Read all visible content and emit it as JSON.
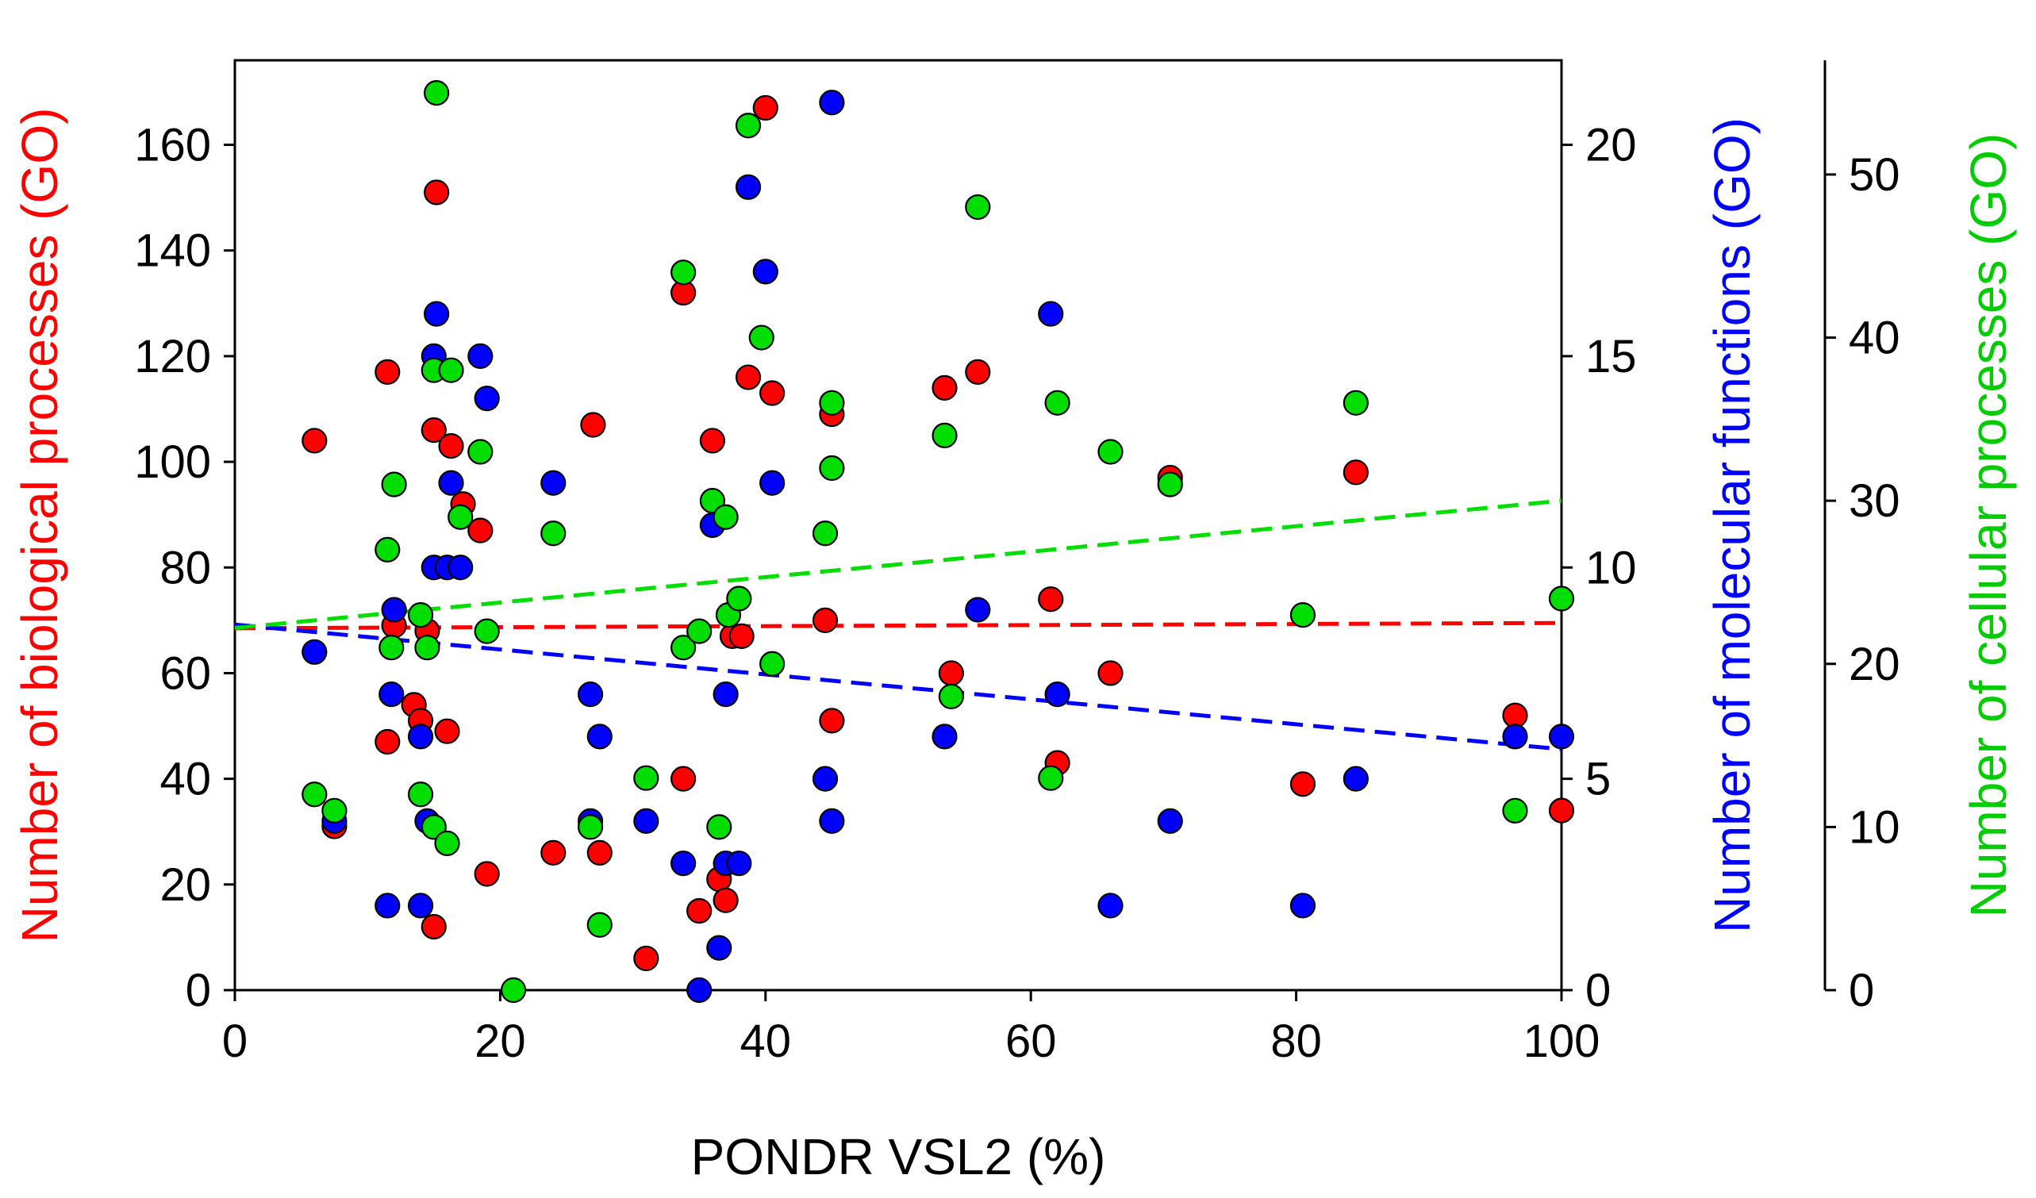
{
  "chart_data": {
    "type": "scatter",
    "xlabel": "PONDR VSL2 (%)",
    "x_range": [
      0,
      100
    ],
    "x_ticks": [
      0,
      20,
      40,
      60,
      80,
      100
    ],
    "axes": {
      "left": {
        "label_main": "Number of biological processes ",
        "label_suffix": "(GO)",
        "color": "#ff0000",
        "range": [
          0,
          176
        ],
        "ticks": [
          0,
          20,
          40,
          60,
          80,
          100,
          120,
          140,
          160
        ]
      },
      "right1": {
        "label_main": "Number of molecular functions ",
        "label_suffix": "(GO)",
        "color": "#0000ff",
        "range": [
          0,
          22
        ],
        "ticks": [
          0,
          5,
          10,
          15,
          20
        ]
      },
      "right2": {
        "label_main": "Number of cellular processes ",
        "label_suffix": "(GO)",
        "color": "#00cc00",
        "range": [
          0,
          57
        ],
        "ticks": [
          0,
          10,
          20,
          30,
          40,
          50
        ]
      }
    },
    "series": [
      {
        "name": "Biological processes",
        "axis": "left",
        "color": "#ff0000",
        "points": [
          [
            6,
            104
          ],
          [
            7.5,
            31
          ],
          [
            11.5,
            47
          ],
          [
            11.5,
            117
          ],
          [
            12,
            69
          ],
          [
            13.5,
            54
          ],
          [
            14,
            51
          ],
          [
            14.5,
            68
          ],
          [
            15,
            106
          ],
          [
            15,
            12
          ],
          [
            15.2,
            151
          ],
          [
            16,
            49
          ],
          [
            16.3,
            103
          ],
          [
            17.2,
            92
          ],
          [
            18.5,
            87
          ],
          [
            19,
            22
          ],
          [
            24,
            26
          ],
          [
            27,
            107
          ],
          [
            27.5,
            26
          ],
          [
            31,
            6
          ],
          [
            33.8,
            40
          ],
          [
            33.8,
            132
          ],
          [
            35,
            15
          ],
          [
            36,
            104
          ],
          [
            36.5,
            21
          ],
          [
            37,
            17
          ],
          [
            37.5,
            67
          ],
          [
            38.2,
            67
          ],
          [
            38.7,
            116
          ],
          [
            40,
            167
          ],
          [
            40.5,
            113
          ],
          [
            44.5,
            70
          ],
          [
            45,
            51
          ],
          [
            45,
            109
          ],
          [
            53.5,
            114
          ],
          [
            54,
            60
          ],
          [
            56,
            117
          ],
          [
            61.5,
            74
          ],
          [
            62,
            43
          ],
          [
            66,
            60
          ],
          [
            70.5,
            97
          ],
          [
            80.5,
            39
          ],
          [
            84.5,
            98
          ],
          [
            96.5,
            52
          ],
          [
            100,
            34
          ]
        ]
      },
      {
        "name": "Molecular functions",
        "axis": "right1",
        "color": "#0000ff",
        "points": [
          [
            6,
            8
          ],
          [
            7.5,
            4
          ],
          [
            11.5,
            2
          ],
          [
            11.8,
            7
          ],
          [
            12,
            9
          ],
          [
            14,
            2
          ],
          [
            14,
            6
          ],
          [
            14.5,
            4
          ],
          [
            15,
            15
          ],
          [
            15,
            10
          ],
          [
            15.2,
            16
          ],
          [
            16,
            10
          ],
          [
            16.3,
            12
          ],
          [
            17,
            10
          ],
          [
            18.5,
            15
          ],
          [
            19,
            14
          ],
          [
            24,
            12
          ],
          [
            26.8,
            7
          ],
          [
            26.8,
            4
          ],
          [
            27.5,
            6
          ],
          [
            31,
            4
          ],
          [
            33.8,
            3
          ],
          [
            35,
            0
          ],
          [
            36,
            11
          ],
          [
            36.5,
            1
          ],
          [
            37,
            7
          ],
          [
            37,
            3
          ],
          [
            38,
            3
          ],
          [
            38.7,
            19
          ],
          [
            40,
            17
          ],
          [
            40.5,
            12
          ],
          [
            44.5,
            5
          ],
          [
            45,
            4
          ],
          [
            45,
            21
          ],
          [
            53.5,
            6
          ],
          [
            56,
            9
          ],
          [
            61.5,
            16
          ],
          [
            62,
            7
          ],
          [
            66,
            2
          ],
          [
            70.5,
            4
          ],
          [
            80.5,
            2
          ],
          [
            84.5,
            5
          ],
          [
            96.5,
            6
          ],
          [
            100,
            6
          ]
        ]
      },
      {
        "name": "Cellular processes",
        "axis": "right2",
        "color": "#00dd00",
        "points": [
          [
            6,
            12
          ],
          [
            7.5,
            11
          ],
          [
            11.5,
            27
          ],
          [
            11.8,
            21
          ],
          [
            12,
            31
          ],
          [
            14,
            23
          ],
          [
            14,
            12
          ],
          [
            14.5,
            21
          ],
          [
            15,
            10
          ],
          [
            15,
            38
          ],
          [
            15.2,
            55
          ],
          [
            16,
            9
          ],
          [
            16.3,
            38
          ],
          [
            17,
            29
          ],
          [
            18.5,
            33
          ],
          [
            19,
            22
          ],
          [
            21,
            0
          ],
          [
            24,
            28
          ],
          [
            26.8,
            10
          ],
          [
            27.5,
            4
          ],
          [
            31,
            13
          ],
          [
            33.8,
            21
          ],
          [
            33.8,
            44
          ],
          [
            35,
            22
          ],
          [
            36,
            30
          ],
          [
            36.5,
            10
          ],
          [
            37,
            29
          ],
          [
            37.2,
            23
          ],
          [
            38,
            24
          ],
          [
            38.7,
            53
          ],
          [
            39.7,
            40
          ],
          [
            40.5,
            20
          ],
          [
            44.5,
            28
          ],
          [
            45,
            32
          ],
          [
            45,
            36
          ],
          [
            53.5,
            34
          ],
          [
            54,
            18
          ],
          [
            56,
            48
          ],
          [
            61.5,
            13
          ],
          [
            62,
            36
          ],
          [
            66,
            33
          ],
          [
            70.5,
            31
          ],
          [
            80.5,
            23
          ],
          [
            84.5,
            36
          ],
          [
            96.5,
            11
          ],
          [
            100,
            24
          ]
        ]
      }
    ],
    "trendlines": [
      {
        "series": "Biological processes",
        "axis": "left",
        "color": "#ff0000",
        "x": [
          0,
          100
        ],
        "y": [
          68.5,
          69.5
        ]
      },
      {
        "series": "Molecular functions",
        "axis": "right1",
        "color": "#0000ff",
        "x": [
          0,
          100
        ],
        "y": [
          8.65,
          5.7
        ]
      },
      {
        "series": "Cellular processes",
        "axis": "right2",
        "color": "#00dd00",
        "x": [
          0,
          100
        ],
        "y": [
          22.2,
          30.0
        ]
      }
    ]
  }
}
